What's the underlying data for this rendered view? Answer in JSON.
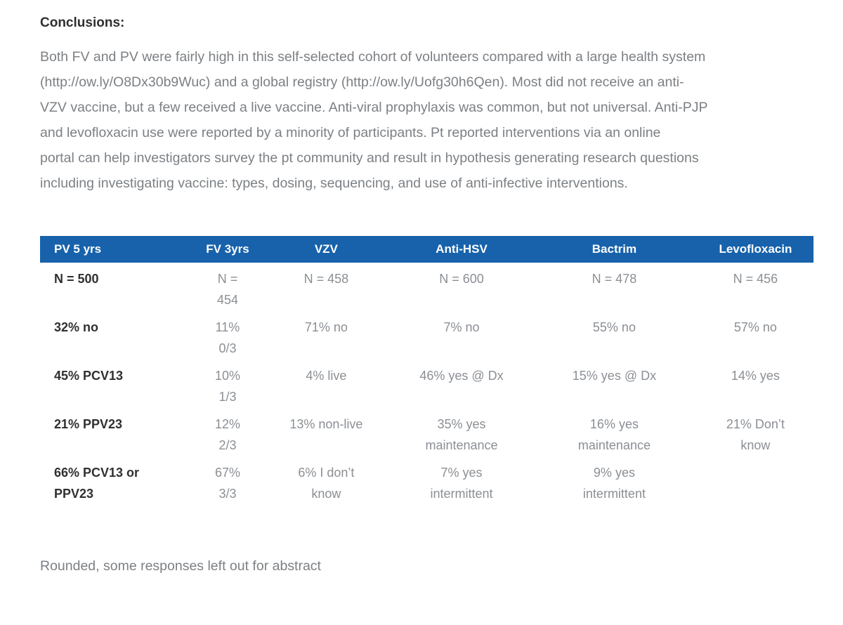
{
  "heading": "Conclusions:",
  "paragraph": "Both FV and PV were fairly high in this self-selected cohort of volunteers compared with a large health system\n(http://ow.ly/O8Dx30b9Wuc) and a global registry (http://ow.ly/Uofg30h6Qen). Most did not receive an anti-\nVZV vaccine, but a few received a live vaccine. Anti-viral prophylaxis was common, but not universal. Anti-PJP\nand levofloxacin use were reported by a minority of participants. Pt reported interventions via an online\nportal can help investigators survey the pt community and result in hypothesis generating research questions\nincluding investigating vaccine: types, dosing, sequencing, and use of anti-infective interventions.",
  "footnote": "Rounded, some responses left out for abstract",
  "table": {
    "header_bg": "#1762ab",
    "header_text_color": "#ffffff",
    "columns": [
      "PV 5 yrs",
      "FV 3yrs",
      "VZV",
      "Anti-HSV",
      "Bactrim",
      "Levofloxacin"
    ],
    "column_widths_percent": [
      20,
      8.5,
      17,
      18,
      21.5,
      15
    ],
    "rows": [
      [
        "N = 500",
        "N =\n454",
        "N = 458",
        "N = 600",
        "N = 478",
        "N = 456"
      ],
      [
        "32% no",
        "11%\n0/3",
        "71% no",
        "7% no",
        "55% no",
        "57% no"
      ],
      [
        "45% PCV13",
        "10%\n1/3",
        "4% live",
        "46% yes @ Dx",
        "15% yes @ Dx",
        "14% yes"
      ],
      [
        "21% PPV23",
        "12%\n2/3",
        "13% non-live",
        "35% yes\nmaintenance",
        "16% yes\nmaintenance",
        "21% Don’t\nknow"
      ],
      [
        "66% PCV13 or\nPPV23",
        "67%\n3/3",
        "6% I don’t\nknow",
        "7% yes\nintermittent",
        "9% yes\nintermittent",
        ""
      ]
    ]
  }
}
